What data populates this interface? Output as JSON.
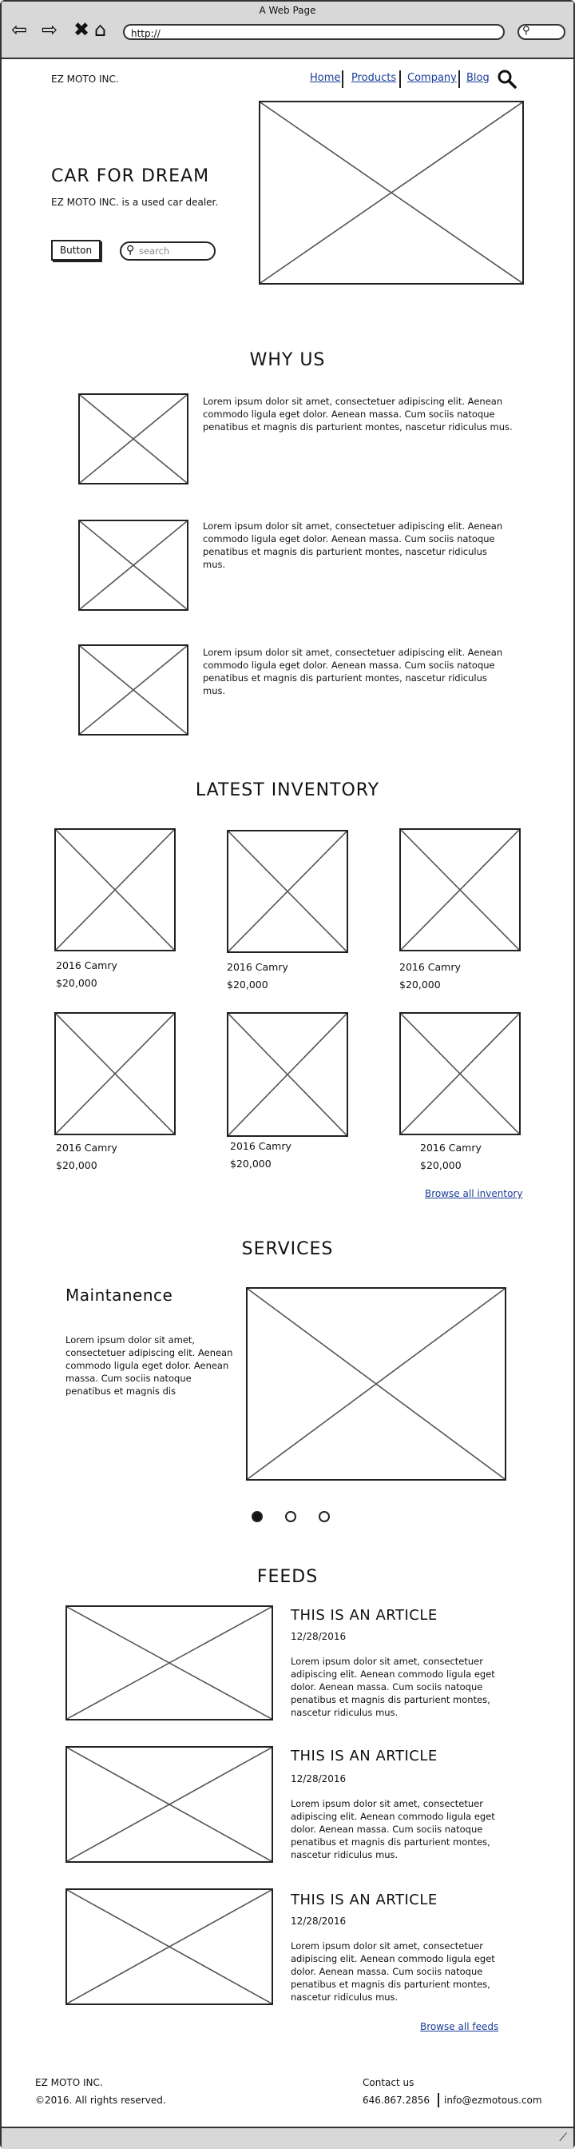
{
  "browser": {
    "window_title": "A Web Page",
    "url": "http://"
  },
  "header": {
    "brand": "EZ MOTO INC.",
    "nav": [
      "Home",
      "Products",
      "Company",
      "Blog"
    ]
  },
  "hero": {
    "title": "CAR FOR DREAM",
    "subtitle": "EZ MOTO INC. is a used car dealer.",
    "button_label": "Button",
    "search_placeholder": "search"
  },
  "why_us": {
    "title": "WHY US",
    "items": [
      "Lorem ipsum dolor sit amet, consectetuer adipiscing elit. Aenean commodo ligula eget dolor. Aenean massa. Cum sociis natoque penatibus et magnis dis parturient montes, nascetur ridiculus mus.",
      "Lorem ipsum dolor sit amet, consectetuer adipiscing elit. Aenean commodo ligula eget dolor. Aenean massa. Cum sociis natoque penatibus et magnis dis parturient montes, nascetur ridiculus mus.",
      "Lorem ipsum dolor sit amet, consectetuer adipiscing elit. Aenean commodo ligula eget dolor. Aenean massa. Cum sociis natoque penatibus et magnis dis parturient montes, nascetur ridiculus mus."
    ]
  },
  "inventory": {
    "title": "LATEST INVENTORY",
    "cars": [
      {
        "name": "2016 Camry",
        "price": "$20,000"
      },
      {
        "name": "2016 Camry",
        "price": "$20,000"
      },
      {
        "name": "2016 Camry",
        "price": "$20,000"
      },
      {
        "name": "2016 Camry",
        "price": "$20,000"
      },
      {
        "name": "2016 Camry",
        "price": "$20,000"
      },
      {
        "name": "2016 Camry",
        "price": "$20,000"
      }
    ],
    "browse_link": "Browse all inventory"
  },
  "services": {
    "title": "SERVICES",
    "heading": "Maintanence",
    "body": "Lorem ipsum dolor sit amet, consectetuer adipiscing elit. Aenean commodo ligula eget dolor. Aenean massa. Cum sociis natoque penatibus et magnis dis",
    "active_slide": 1,
    "slide_count": 3
  },
  "feeds": {
    "title": "FEEDS",
    "articles": [
      {
        "title": "THIS IS AN ARTICLE",
        "date": "12/28/2016",
        "body": "Lorem ipsum dolor sit amet, consectetuer adipiscing elit. Aenean commodo ligula eget dolor. Aenean massa. Cum sociis natoque penatibus et magnis dis parturient montes, nascetur ridiculus mus."
      },
      {
        "title": "THIS IS AN ARTICLE",
        "date": "12/28/2016",
        "body": "Lorem ipsum dolor sit amet, consectetuer adipiscing elit. Aenean commodo ligula eget dolor. Aenean massa. Cum sociis natoque penatibus et magnis dis parturient montes, nascetur ridiculus mus."
      },
      {
        "title": "THIS IS AN ARTICLE",
        "date": "12/28/2016",
        "body": "Lorem ipsum dolor sit amet, consectetuer adipiscing elit. Aenean commodo ligula eget dolor. Aenean massa. Cum sociis natoque penatibus et magnis dis parturient montes, nascetur ridiculus mus."
      }
    ],
    "browse_link": "Browse all feeds"
  },
  "footer": {
    "company": "EZ MOTO INC.",
    "copyright": "©2016. All rights reserved.",
    "contact_label": "Contact us",
    "phone": "646.867.2856",
    "email": "info@ezmotous.com"
  }
}
